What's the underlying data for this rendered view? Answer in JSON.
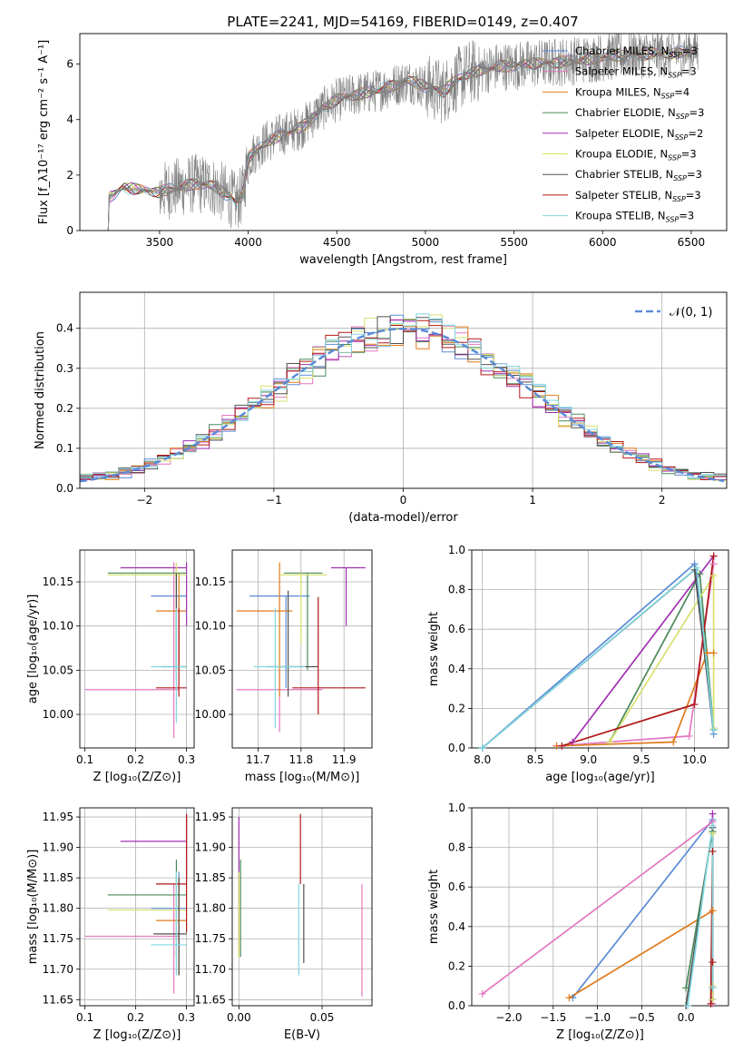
{
  "figure": {
    "title": "PLATE=2241, MJD=54169, FIBERID=0149, z=0.407"
  },
  "chart_data": [
    {
      "id": "spectrum",
      "type": "line",
      "title": "PLATE=2241, MJD=54169, FIBERID=0149, z=0.407",
      "xlabel": "wavelength [Angstrom, rest frame]",
      "ylabel": "Flux [f_λ10⁻¹⁷ erg cm⁻² s⁻¹ A⁻¹]",
      "xlim": [
        3050,
        6700
      ],
      "ylim": [
        0,
        7.1
      ],
      "xticks": [
        3500,
        4000,
        4500,
        5000,
        5500,
        6000,
        6500
      ],
      "yticks": [
        0,
        2,
        4,
        6
      ],
      "grid": false,
      "legend_position": "top-right",
      "data_range": [
        3210,
        6540
      ],
      "continuum": [
        [
          3210,
          0.0
        ],
        [
          3215,
          1.2
        ],
        [
          3300,
          1.55
        ],
        [
          3400,
          1.45
        ],
        [
          3500,
          1.4
        ],
        [
          3600,
          1.55
        ],
        [
          3700,
          1.7
        ],
        [
          3800,
          1.6
        ],
        [
          3850,
          1.4
        ],
        [
          3900,
          1.2
        ],
        [
          3930,
          1.0
        ],
        [
          3970,
          1.3
        ],
        [
          4000,
          2.6
        ],
        [
          4100,
          3.2
        ],
        [
          4200,
          3.5
        ],
        [
          4300,
          3.7
        ],
        [
          4400,
          4.3
        ],
        [
          4500,
          4.7
        ],
        [
          4600,
          4.9
        ],
        [
          4700,
          5.0
        ],
        [
          4800,
          5.2
        ],
        [
          4900,
          5.4
        ],
        [
          5000,
          5.2
        ],
        [
          5100,
          5.0
        ],
        [
          5170,
          5.4
        ],
        [
          5250,
          5.7
        ],
        [
          5400,
          5.9
        ],
        [
          5600,
          6.0
        ],
        [
          5800,
          6.1
        ],
        [
          6000,
          6.25
        ],
        [
          6200,
          6.35
        ],
        [
          6400,
          6.4
        ],
        [
          6540,
          6.5
        ]
      ],
      "series": [
        {
          "name": "Chabrier MILES, N_SSP=3",
          "color": "#5b8bd6"
        },
        {
          "name": "Salpeter MILES, N_SSP=3",
          "color": "#e377c2"
        },
        {
          "name": "Kroupa MILES, N_SSP=4",
          "color": "#e07b1a"
        },
        {
          "name": "Chabrier ELODIE, N_SSP=3",
          "color": "#4a8a5a"
        },
        {
          "name": "Salpeter ELODIE, N_SSP=2",
          "color": "#a030b0"
        },
        {
          "name": "Kroupa ELODIE, N_SSP=3",
          "color": "#d8e070"
        },
        {
          "name": "Chabrier STELIB, N_SSP=3",
          "color": "#505050"
        },
        {
          "name": "Salpeter STELIB, N_SSP=3",
          "color": "#b01818"
        },
        {
          "name": "Kroupa STELIB, N_SSP=3",
          "color": "#80d8e0"
        }
      ],
      "data_series": {
        "name": "data",
        "color": "#808080"
      }
    },
    {
      "id": "residuals",
      "type": "line",
      "xlabel": "(data-model)/error",
      "ylabel": "Normed distribution",
      "xlim": [
        -2.5,
        2.5
      ],
      "ylim": [
        0,
        0.49
      ],
      "xticks": [
        -2,
        -1,
        0,
        1,
        2
      ],
      "yticks": [
        0.0,
        0.1,
        0.2,
        0.3,
        0.4
      ],
      "grid": true,
      "legend_position": "top-right",
      "reference": {
        "name": "𝒩(0, 1)",
        "color": "#5b8bd6",
        "mean": 0,
        "sigma": 1
      },
      "bin_width": 0.1,
      "histogram_hint": "step histograms, one per model, following N(0,1)"
    },
    {
      "id": "age_vs_Z",
      "type": "scatter",
      "xlabel": "Z [log₁₀(Z/Z⊙)]",
      "ylabel": "age  [log₁₀(age/yr)]",
      "xlim": [
        0.09,
        0.315
      ],
      "ylim": [
        9.962,
        10.186
      ],
      "xticks": [
        0.1,
        0.2,
        0.3
      ],
      "yticks": [
        10.0,
        10.05,
        10.1,
        10.15
      ],
      "grid": true,
      "points": [
        {
          "series": "Chabrier MILES",
          "x": [
            0.23,
            0.3
          ],
          "y": [
            10.05,
            10.134
          ],
          "cx": 0.285,
          "cy": 10.134
        },
        {
          "series": "Salpeter MILES",
          "x": [
            0.1,
            0.285
          ],
          "y": [
            9.973,
            10.172
          ],
          "cx": 0.275,
          "cy": 10.028
        },
        {
          "series": "Kroupa MILES",
          "x": [
            0.24,
            0.3
          ],
          "y": [
            10.05,
            10.16
          ],
          "cx": 0.285,
          "cy": 10.117
        },
        {
          "series": "Chabrier ELODIE",
          "x": [
            0.145,
            0.3
          ],
          "y": [
            10.05,
            10.17
          ],
          "cx": 0.28,
          "cy": 10.16
        },
        {
          "series": "Salpeter ELODIE",
          "x": [
            0.17,
            0.3
          ],
          "y": [
            10.1,
            10.172
          ],
          "cx": 0.3,
          "cy": 10.166
        },
        {
          "series": "Kroupa ELODIE",
          "x": [
            0.145,
            0.3
          ],
          "y": [
            10.06,
            10.172
          ],
          "cx": 0.28,
          "cy": 10.158
        },
        {
          "series": "Chabrier STELIB",
          "x": [
            0.25,
            0.3
          ],
          "y": [
            10.04,
            10.16
          ],
          "cx": 0.28,
          "cy": 10.054
        },
        {
          "series": "Salpeter STELIB",
          "x": [
            0.24,
            0.3
          ],
          "y": [
            10.02,
            10.12
          ],
          "cx": 0.285,
          "cy": 10.03
        },
        {
          "series": "Kroupa STELIB",
          "x": [
            0.23,
            0.3
          ],
          "y": [
            9.99,
            10.12
          ],
          "cx": 0.28,
          "cy": 10.054
        }
      ]
    },
    {
      "id": "age_vs_mass",
      "type": "scatter",
      "xlabel": "mass [log₁₀(M/M⊙)]",
      "ylabel": "",
      "xlim": [
        11.64,
        11.965
      ],
      "ylim": [
        9.962,
        10.186
      ],
      "xticks": [
        11.7,
        11.8,
        11.9
      ],
      "yticks": [
        10.0,
        10.05,
        10.1,
        10.15
      ],
      "grid": true,
      "points": [
        {
          "series": "Chabrier MILES",
          "x": [
            11.68,
            11.82
          ],
          "y": [
            10.03,
            10.134
          ],
          "cx": 11.765,
          "cy": 10.134
        },
        {
          "series": "Salpeter MILES",
          "x": [
            11.65,
            11.85
          ],
          "y": [
            9.98,
            10.05
          ],
          "cx": 11.75,
          "cy": 10.028
        },
        {
          "series": "Kroupa MILES",
          "x": [
            11.65,
            11.78
          ],
          "y": [
            10.02,
            10.172
          ],
          "cx": 11.75,
          "cy": 10.117
        },
        {
          "series": "Chabrier ELODIE",
          "x": [
            11.76,
            11.85
          ],
          "y": [
            10.05,
            10.16
          ],
          "cx": 11.815,
          "cy": 10.16
        },
        {
          "series": "Salpeter ELODIE",
          "x": [
            11.87,
            11.95
          ],
          "y": [
            10.1,
            10.166
          ],
          "cx": 11.905,
          "cy": 10.166
        },
        {
          "series": "Kroupa ELODIE",
          "x": [
            11.75,
            11.86
          ],
          "y": [
            10.08,
            10.16
          ],
          "cx": 11.8,
          "cy": 10.158
        },
        {
          "series": "Chabrier STELIB",
          "x": [
            11.72,
            11.84
          ],
          "y": [
            10.02,
            10.14
          ],
          "cx": 11.77,
          "cy": 10.054
        },
        {
          "series": "Salpeter STELIB",
          "x": [
            11.78,
            11.95
          ],
          "y": [
            10.0,
            10.133
          ],
          "cx": 11.84,
          "cy": 10.03
        },
        {
          "series": "Kroupa STELIB",
          "x": [
            11.69,
            11.81
          ],
          "y": [
            9.985,
            10.12
          ],
          "cx": 11.74,
          "cy": 10.054
        }
      ]
    },
    {
      "id": "massweight_vs_age",
      "type": "line",
      "xlabel": "age  [log₁₀(age/yr)]",
      "ylabel": "mass weight",
      "xlim": [
        7.9,
        10.32
      ],
      "ylim": [
        0,
        1
      ],
      "xticks": [
        8.0,
        8.5,
        9.0,
        9.5,
        10.0
      ],
      "yticks": [
        0.0,
        0.2,
        0.4,
        0.6,
        0.8,
        1.0
      ],
      "grid": true,
      "series": [
        {
          "name": "Chabrier MILES",
          "x": [
            8.0,
            10.0,
            10.18
          ],
          "y": [
            0.0,
            0.93,
            0.07
          ]
        },
        {
          "name": "Salpeter MILES",
          "x": [
            8.7,
            9.95,
            10.18
          ],
          "y": [
            0.01,
            0.06,
            0.93
          ]
        },
        {
          "name": "Kroupa MILES",
          "x": [
            8.7,
            9.8,
            10.12,
            10.18
          ],
          "y": [
            0.01,
            0.03,
            0.48,
            0.48
          ]
        },
        {
          "name": "Chabrier ELODIE",
          "x": [
            9.2,
            10.05,
            10.18
          ],
          "y": [
            0.03,
            0.88,
            0.09
          ]
        },
        {
          "name": "Salpeter ELODIE",
          "x": [
            8.85,
            10.18
          ],
          "y": [
            0.03,
            0.97
          ]
        },
        {
          "name": "Kroupa ELODIE",
          "x": [
            9.2,
            10.18,
            10.18
          ],
          "y": [
            0.03,
            0.87,
            0.1
          ]
        },
        {
          "name": "Chabrier STELIB",
          "x": [
            8.0,
            10.0,
            10.18
          ],
          "y": [
            0.0,
            0.9,
            0.09
          ]
        },
        {
          "name": "Salpeter STELIB",
          "x": [
            8.75,
            10.0,
            10.18
          ],
          "y": [
            0.01,
            0.22,
            0.97
          ]
        },
        {
          "name": "Kroupa STELIB",
          "x": [
            8.0,
            10.02,
            10.18
          ],
          "y": [
            0.0,
            0.91,
            0.09
          ]
        }
      ]
    },
    {
      "id": "mass_vs_Z",
      "type": "scatter",
      "xlabel": "Z [log₁₀(Z/Z⊙)]",
      "ylabel": "mass [log₁₀(M/M⊙)]",
      "xlim": [
        0.09,
        0.315
      ],
      "ylim": [
        11.64,
        11.965
      ],
      "xticks": [
        0.1,
        0.2,
        0.3
      ],
      "yticks": [
        11.65,
        11.7,
        11.75,
        11.8,
        11.85,
        11.9,
        11.95
      ],
      "grid": true,
      "points": [
        {
          "series": "Chabrier MILES",
          "x": [
            0.23,
            0.3
          ],
          "y": [
            11.69,
            11.86
          ],
          "cx": 0.285,
          "cy": 11.8
        },
        {
          "series": "Salpeter MILES",
          "x": [
            0.1,
            0.285
          ],
          "y": [
            11.66,
            11.84
          ],
          "cx": 0.275,
          "cy": 11.754
        },
        {
          "series": "Kroupa MILES",
          "x": [
            0.24,
            0.3
          ],
          "y": [
            11.69,
            11.85
          ],
          "cx": 0.285,
          "cy": 11.78
        },
        {
          "series": "Chabrier ELODIE",
          "x": [
            0.145,
            0.3
          ],
          "y": [
            11.72,
            11.88
          ],
          "cx": 0.28,
          "cy": 11.822
        },
        {
          "series": "Salpeter ELODIE",
          "x": [
            0.17,
            0.3
          ],
          "y": [
            11.85,
            11.95
          ],
          "cx": 0.3,
          "cy": 11.91
        },
        {
          "series": "Kroupa ELODIE",
          "x": [
            0.145,
            0.3
          ],
          "y": [
            11.72,
            11.86
          ],
          "cx": 0.28,
          "cy": 11.797
        },
        {
          "series": "Chabrier STELIB",
          "x": [
            0.235,
            0.3
          ],
          "y": [
            11.69,
            11.85
          ],
          "cx": 0.285,
          "cy": 11.758
        },
        {
          "series": "Salpeter STELIB",
          "x": [
            0.24,
            0.3
          ],
          "y": [
            11.76,
            11.955
          ],
          "cx": 0.3,
          "cy": 11.84
        },
        {
          "series": "Kroupa STELIB",
          "x": [
            0.23,
            0.3
          ],
          "y": [
            11.69,
            11.86
          ],
          "cx": 0.28,
          "cy": 11.74
        }
      ]
    },
    {
      "id": "mass_vs_EBV",
      "type": "scatter",
      "xlabel": "E(B-V)",
      "ylabel": "",
      "xlim": [
        -0.004,
        0.08
      ],
      "ylim": [
        11.64,
        11.965
      ],
      "xticks": [
        0.0,
        0.05
      ],
      "xticklabels": [
        "0.00",
        "0.05"
      ],
      "yticks": [
        11.65,
        11.7,
        11.75,
        11.8,
        11.85,
        11.9,
        11.95
      ],
      "grid": true,
      "points": [
        {
          "series": "Chabrier MILES",
          "x": [
            0.0,
            0.0
          ],
          "y": [
            11.74,
            11.86
          ],
          "cx": 0.0,
          "cy": 11.8
        },
        {
          "series": "Salpeter MILES",
          "x": [
            0.074,
            0.074
          ],
          "y": [
            11.655,
            11.84
          ],
          "cx": 0.074,
          "cy": 11.754
        },
        {
          "series": "Kroupa MILES",
          "x": [
            0.0,
            0.0
          ],
          "y": [
            11.72,
            11.85
          ],
          "cx": 0.0,
          "cy": 11.78
        },
        {
          "series": "Chabrier ELODIE",
          "x": [
            0.001,
            0.001
          ],
          "y": [
            11.72,
            11.88
          ],
          "cx": 0.001,
          "cy": 11.8
        },
        {
          "series": "Salpeter ELODIE",
          "x": [
            0.0,
            0.0
          ],
          "y": [
            11.85,
            11.95
          ],
          "cx": 0.0,
          "cy": 11.9
        },
        {
          "series": "Kroupa ELODIE",
          "x": [
            0.0,
            0.0
          ],
          "y": [
            11.72,
            11.86
          ],
          "cx": 0.0,
          "cy": 11.8
        },
        {
          "series": "Chabrier STELIB",
          "x": [
            0.039,
            0.039
          ],
          "y": [
            11.71,
            11.84
          ],
          "cx": 0.039,
          "cy": 11.76
        },
        {
          "series": "Salpeter STELIB",
          "x": [
            0.037,
            0.037
          ],
          "y": [
            11.84,
            11.955
          ],
          "cx": 0.037,
          "cy": 11.9
        },
        {
          "series": "Kroupa STELIB",
          "x": [
            0.036,
            0.036
          ],
          "y": [
            11.69,
            11.84
          ],
          "cx": 0.036,
          "cy": 11.76
        }
      ]
    },
    {
      "id": "massweight_vs_Z",
      "type": "line",
      "xlabel": "Z [log₁₀(Z/Z⊙)]",
      "ylabel": "mass weight",
      "xlim": [
        -2.42,
        0.48
      ],
      "ylim": [
        0,
        1
      ],
      "xticks": [
        -2.0,
        -1.5,
        -1.0,
        -0.5,
        0.0
      ],
      "yticks": [
        0.0,
        0.2,
        0.4,
        0.6,
        0.8,
        1.0
      ],
      "grid": true,
      "series": [
        {
          "name": "Chabrier MILES",
          "x": [
            -1.28,
            0.3,
            0.3
          ],
          "y": [
            0.04,
            0.94,
            0.03
          ]
        },
        {
          "name": "Salpeter MILES",
          "x": [
            -2.3,
            0.3,
            0.3
          ],
          "y": [
            0.06,
            0.93,
            0.01
          ]
        },
        {
          "name": "Kroupa MILES",
          "x": [
            -1.32,
            0.3,
            0.3
          ],
          "y": [
            0.04,
            0.48,
            0.48
          ]
        },
        {
          "name": "Chabrier ELODIE",
          "x": [
            0.0,
            0.3,
            0.3
          ],
          "y": [
            0.09,
            0.88,
            0.03
          ]
        },
        {
          "name": "Salpeter ELODIE",
          "x": [
            0.3,
            0.3
          ],
          "y": [
            0.03,
            0.97
          ]
        },
        {
          "name": "Kroupa ELODIE",
          "x": [
            0.3,
            0.3,
            0.3
          ],
          "y": [
            0.03,
            0.87,
            0.1
          ]
        },
        {
          "name": "Chabrier STELIB",
          "x": [
            0.0,
            0.3,
            0.3
          ],
          "y": [
            0.0,
            0.9,
            0.09
          ]
        },
        {
          "name": "Salpeter STELIB",
          "x": [
            0.28,
            0.3,
            0.3
          ],
          "y": [
            0.01,
            0.78,
            0.22
          ]
        },
        {
          "name": "Kroupa STELIB",
          "x": [
            0.02,
            0.3,
            0.3
          ],
          "y": [
            0.0,
            0.91,
            0.09
          ]
        }
      ]
    }
  ]
}
